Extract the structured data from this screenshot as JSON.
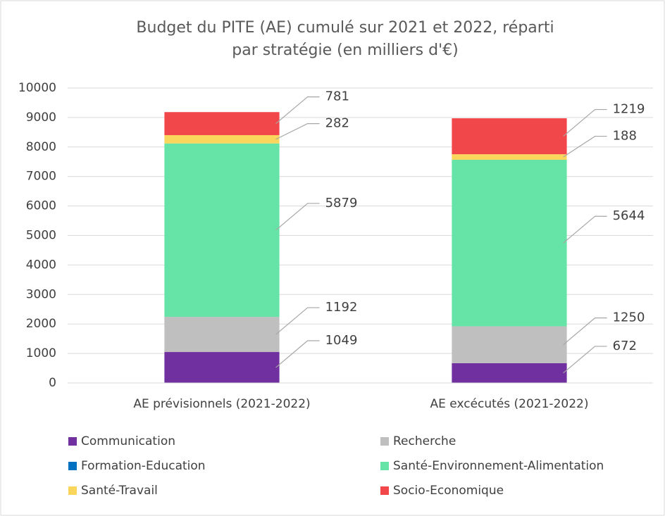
{
  "chart_data": {
    "type": "stacked_bar",
    "title": [
      "Budget du PITE (AE) cumulé sur 2021 et 2022, réparti",
      "par stratégie (en milliers d'€)"
    ],
    "categories": [
      "AE prévisionnels (2021-2022)",
      "AE excécutés (2021-2022)"
    ],
    "series": [
      {
        "name": "Communication",
        "color": "#7030a0",
        "values": [
          1049,
          672
        ]
      },
      {
        "name": "Recherche",
        "color": "#bfbfbf",
        "values": [
          1192,
          1250
        ]
      },
      {
        "name": "Formation-Education",
        "color": "#0070c0",
        "values": [
          0,
          0
        ]
      },
      {
        "name": "Santé-Environnement-Alimentation",
        "color": "#66e3a6",
        "values": [
          5879,
          5644
        ]
      },
      {
        "name": "Santé-Travail",
        "color": "#fad65c",
        "values": [
          282,
          188
        ]
      },
      {
        "name": "Socio-Economique",
        "color": "#f2474a",
        "values": [
          781,
          1219
        ]
      }
    ],
    "ylim": [
      0,
      10000
    ],
    "yticks": [
      0,
      1000,
      2000,
      3000,
      4000,
      5000,
      6000,
      7000,
      8000,
      9000,
      10000
    ],
    "grid": true,
    "legend": "bottom"
  }
}
